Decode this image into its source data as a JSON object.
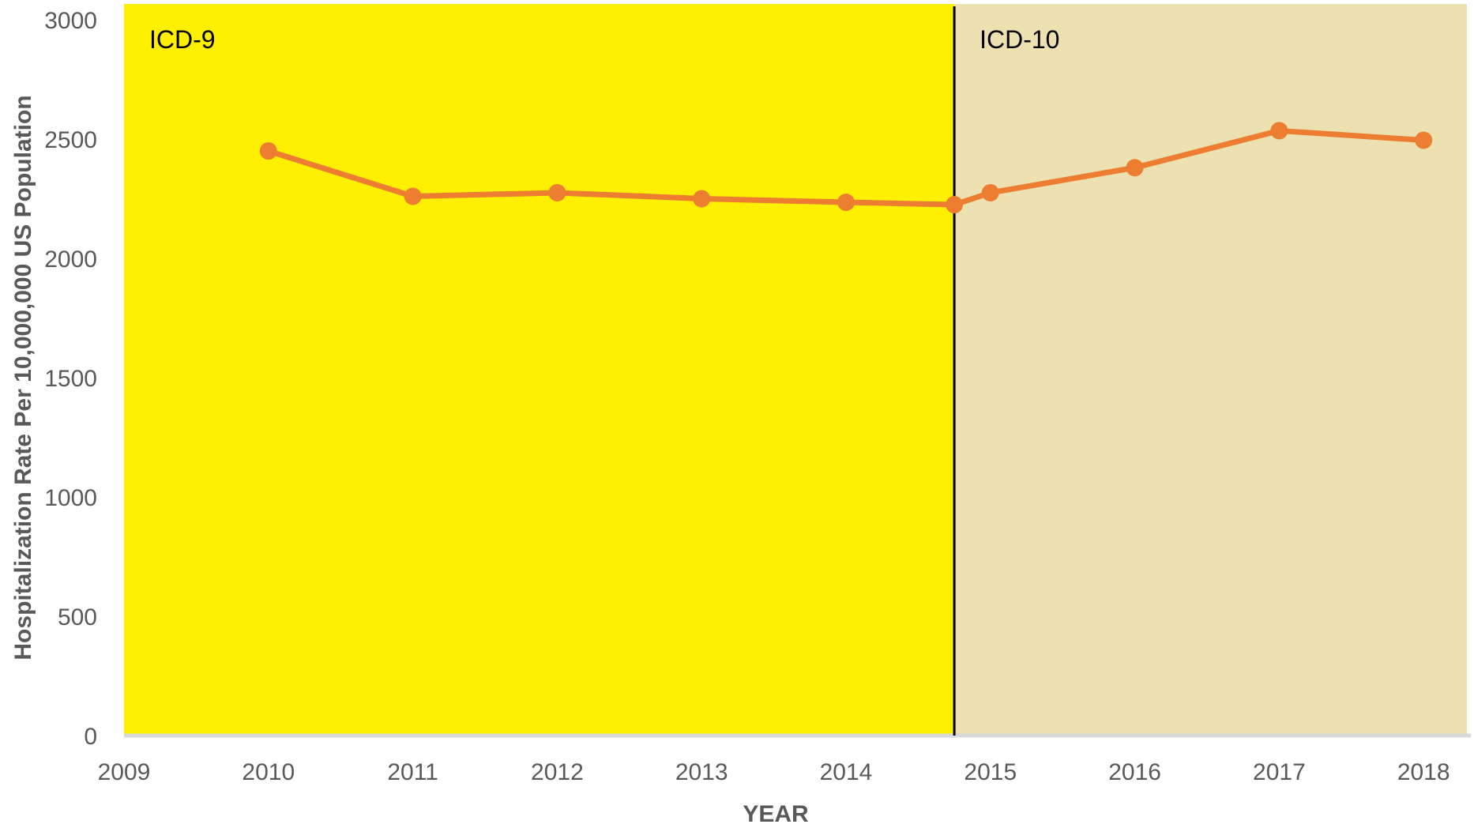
{
  "chart_data": {
    "type": "line",
    "title": "",
    "xlabel": "YEAR",
    "ylabel": "Hospitalization Rate Per 10,000,000 US Population",
    "xlim": [
      2009,
      2018.1
    ],
    "ylim": [
      0,
      3000
    ],
    "x_ticks": [
      "2009",
      "2010",
      "2011",
      "2012",
      "2013",
      "2014",
      "2015",
      "2016",
      "2017",
      "2018"
    ],
    "y_ticks": [
      "0",
      "500",
      "1000",
      "1500",
      "2000",
      "2500",
      "3000"
    ],
    "grid": false,
    "legend": "none",
    "regions": [
      {
        "label": "ICD-9",
        "from": 2009,
        "to": 2014.75,
        "color": "#FFEF00"
      },
      {
        "label": "ICD-10",
        "from": 2014.75,
        "to": 2018.3,
        "color": "#EDE0B1"
      }
    ],
    "divider_x": 2014.75,
    "series": [
      {
        "color": "#ED7D31",
        "points": [
          {
            "x": 2010,
            "y": 2450
          },
          {
            "x": 2011,
            "y": 2260
          },
          {
            "x": 2012,
            "y": 2275
          },
          {
            "x": 2013,
            "y": 2250
          },
          {
            "x": 2014,
            "y": 2235
          },
          {
            "x": 2014.75,
            "y": 2225
          },
          {
            "x": 2015,
            "y": 2275
          },
          {
            "x": 2016,
            "y": 2380
          },
          {
            "x": 2017,
            "y": 2535
          },
          {
            "x": 2018,
            "y": 2495
          }
        ]
      }
    ],
    "axis_color": "#D9D9D9"
  }
}
